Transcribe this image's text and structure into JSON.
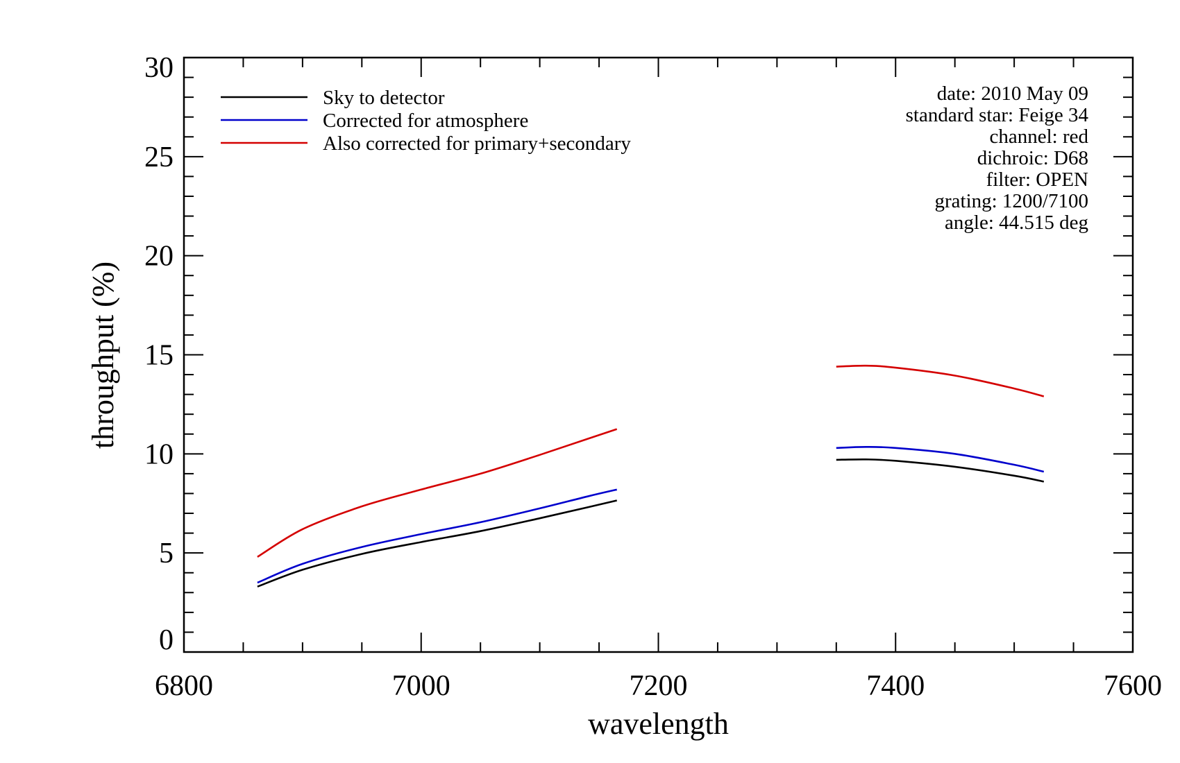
{
  "chart_data": {
    "type": "line",
    "title": "",
    "xlabel": "wavelength",
    "ylabel": "throughput (%)",
    "xlim": [
      6800,
      7600
    ],
    "ylim": [
      0,
      30
    ],
    "x_ticks": [
      6800,
      7000,
      7200,
      7400,
      7600
    ],
    "x_tick_labels": [
      "6800",
      "7000",
      "7200",
      "7400",
      "7600"
    ],
    "x_minor_step": 50,
    "y_ticks": [
      0,
      5,
      10,
      15,
      20,
      25,
      30
    ],
    "y_tick_labels": [
      "0",
      "5",
      "10",
      "15",
      "20",
      "25",
      "30"
    ],
    "y_minor_step": 1,
    "grid": false,
    "legend_position": "top-left",
    "series": [
      {
        "name": "Sky to detector",
        "color": "#000000",
        "segments": [
          {
            "x": [
              6862,
              6900,
              6950,
              7000,
              7050,
              7100,
              7140,
              7165
            ],
            "y": [
              3.3,
              4.15,
              4.95,
              5.55,
              6.1,
              6.75,
              7.3,
              7.65
            ]
          },
          {
            "x": [
              7350,
              7375,
              7400,
              7450,
              7500,
              7525
            ],
            "y": [
              9.7,
              9.72,
              9.65,
              9.35,
              8.9,
              8.6
            ]
          }
        ]
      },
      {
        "name": "Corrected for atmosphere",
        "color": "#0000cc",
        "segments": [
          {
            "x": [
              6862,
              6900,
              6950,
              7000,
              7050,
              7100,
              7140,
              7165
            ],
            "y": [
              3.5,
              4.45,
              5.3,
              5.95,
              6.55,
              7.25,
              7.85,
              8.2
            ]
          },
          {
            "x": [
              7350,
              7375,
              7400,
              7450,
              7500,
              7525
            ],
            "y": [
              10.3,
              10.35,
              10.3,
              10.0,
              9.45,
              9.1
            ]
          }
        ]
      },
      {
        "name": "Also corrected for primary+secondary",
        "color": "#d40000",
        "segments": [
          {
            "x": [
              6862,
              6900,
              6950,
              7000,
              7050,
              7100,
              7140,
              7165
            ],
            "y": [
              4.8,
              6.2,
              7.35,
              8.2,
              9.0,
              9.95,
              10.75,
              11.25
            ]
          },
          {
            "x": [
              7350,
              7375,
              7400,
              7450,
              7500,
              7525
            ],
            "y": [
              14.4,
              14.45,
              14.35,
              13.95,
              13.3,
              12.9
            ]
          }
        ]
      }
    ],
    "annotation_lines": [
      "date: 2010 May 09",
      "standard star: Feige 34",
      "channel: red",
      "dichroic: D68",
      "filter: OPEN",
      "grating: 1200/7100",
      "angle: 44.515 deg"
    ]
  }
}
